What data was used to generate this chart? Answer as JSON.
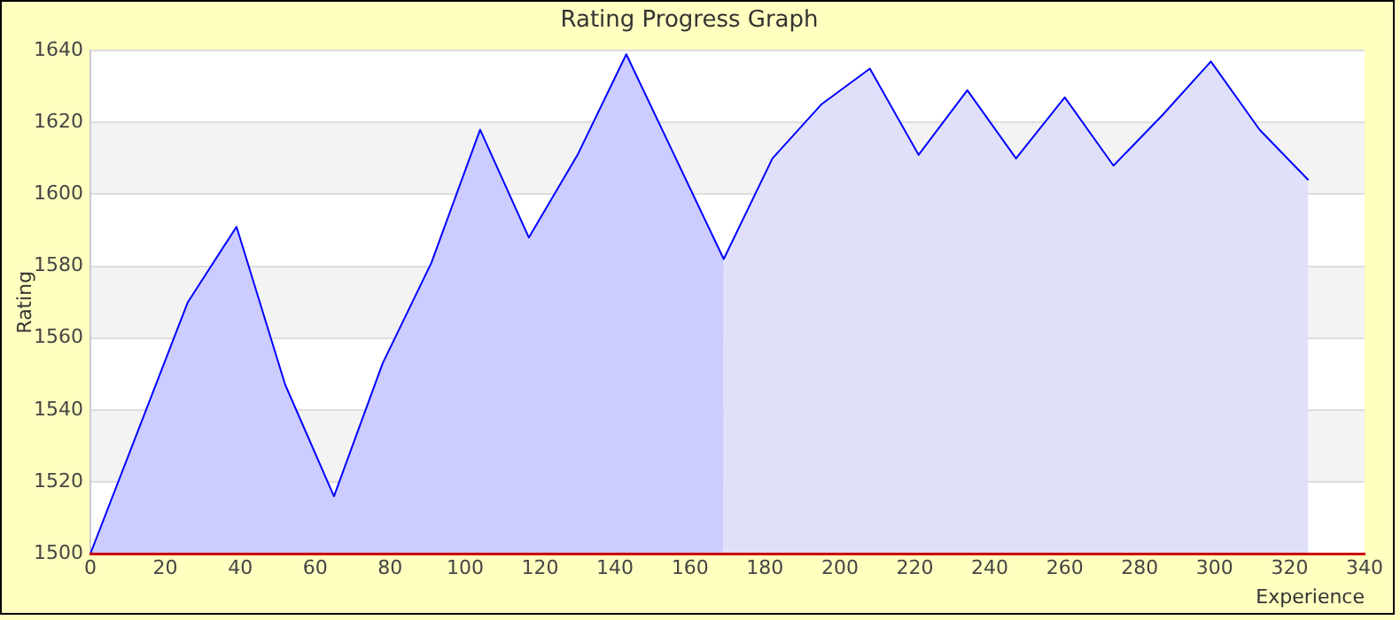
{
  "chart_data": {
    "type": "area",
    "title": "Rating Progress Graph",
    "xlabel": "Experience",
    "ylabel": "Rating",
    "series": [
      {
        "type": "area",
        "color": "#ccccff",
        "x": [
          0,
          26,
          39,
          52,
          65,
          78,
          91,
          104,
          117,
          130,
          143,
          169
        ],
        "values": [
          1500,
          1570,
          1591,
          1547,
          1516,
          1553,
          1581,
          1618,
          1588,
          1611,
          1639,
          1582
        ]
      },
      {
        "type": "area",
        "color": "#e0e0fa",
        "x": [
          169,
          182,
          195,
          208,
          221,
          234,
          247,
          260,
          273,
          286,
          299,
          312,
          325
        ],
        "values": [
          1582,
          1610,
          1625,
          1635,
          1611,
          1629,
          1610,
          1627,
          1608,
          1622,
          1637,
          1618,
          1604
        ]
      },
      {
        "type": "line",
        "color": "#0000ff",
        "x": [
          0,
          26,
          39,
          52,
          65,
          78,
          91,
          104,
          117,
          130,
          143,
          169,
          182,
          195,
          208,
          221,
          234,
          247,
          260,
          273,
          286,
          299,
          312,
          325
        ],
        "values": [
          1500,
          1570,
          1591,
          1547,
          1516,
          1553,
          1581,
          1618,
          1588,
          1611,
          1639,
          1582,
          1610,
          1625,
          1635,
          1611,
          1629,
          1610,
          1627,
          1608,
          1622,
          1637,
          1618,
          1604
        ]
      }
    ],
    "xlim": [
      0,
      340
    ],
    "xticks": [
      0,
      20,
      40,
      60,
      80,
      100,
      120,
      140,
      160,
      180,
      200,
      220,
      240,
      260,
      280,
      300,
      320,
      340
    ],
    "ylim": [
      1500,
      1640
    ],
    "yticks": [
      1500,
      1520,
      1540,
      1560,
      1580,
      1600,
      1620,
      1640
    ],
    "grid": "y",
    "marker": "none",
    "legend": false
  }
}
